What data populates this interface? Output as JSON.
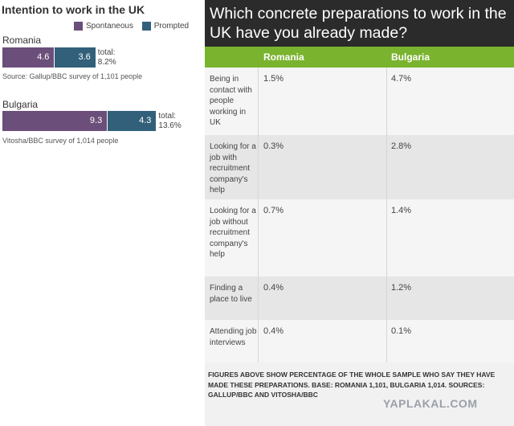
{
  "chart_data": [
    {
      "type": "bar",
      "title": "Intention to work in the UK",
      "legend": [
        "Spontaneous",
        "Prompted"
      ],
      "colors": {
        "spontaneous": "#6b4e7a",
        "prompted": "#32607a"
      },
      "categories": [
        "Romania",
        "Bulgaria"
      ],
      "series": [
        {
          "name": "Spontaneous",
          "values": [
            4.6,
            9.3
          ]
        },
        {
          "name": "Prompted",
          "values": [
            3.6,
            4.3
          ]
        }
      ],
      "totals": [
        "total:\n8.2%",
        "total:\n13.6%"
      ],
      "sources": [
        "Source: Gallup/BBC survey of 1,101 people",
        "Vitosha/BBC survey of 1,014 people"
      ]
    },
    {
      "type": "table",
      "title": "Which concrete preparations to work in the UK have you already made?",
      "columns": [
        "Romania",
        "Bulgaria"
      ],
      "rows": [
        {
          "label": "Being in contact with people working in UK",
          "values": [
            "1.5%",
            "4.7%"
          ]
        },
        {
          "label": "Looking for a job with recruitment company's help",
          "values": [
            "0.3%",
            "2.8%"
          ]
        },
        {
          "label": "Looking for a job without recruitment company's help",
          "values": [
            "0.7%",
            "1.4%"
          ]
        },
        {
          "label": "Finding a place to live",
          "values": [
            "0.4%",
            "1.2%"
          ]
        },
        {
          "label": "Attending job interviews",
          "values": [
            "0.4%",
            "0.1%"
          ]
        }
      ],
      "note": "FIGURES ABOVE SHOW PERCENTAGE OF THE WHOLE SAMPLE WHO SAY THEY HAVE MADE THESE PREPARATIONS. BASE: ROMANIA 1,101, BULGARIA 1,014. SOURCES: GALLUP/BBC AND VITOSHA/BBC",
      "header_color": "#2b2b2b",
      "accent_color": "#7ab32e"
    }
  ],
  "watermark": "YAPLAKAL.COM"
}
